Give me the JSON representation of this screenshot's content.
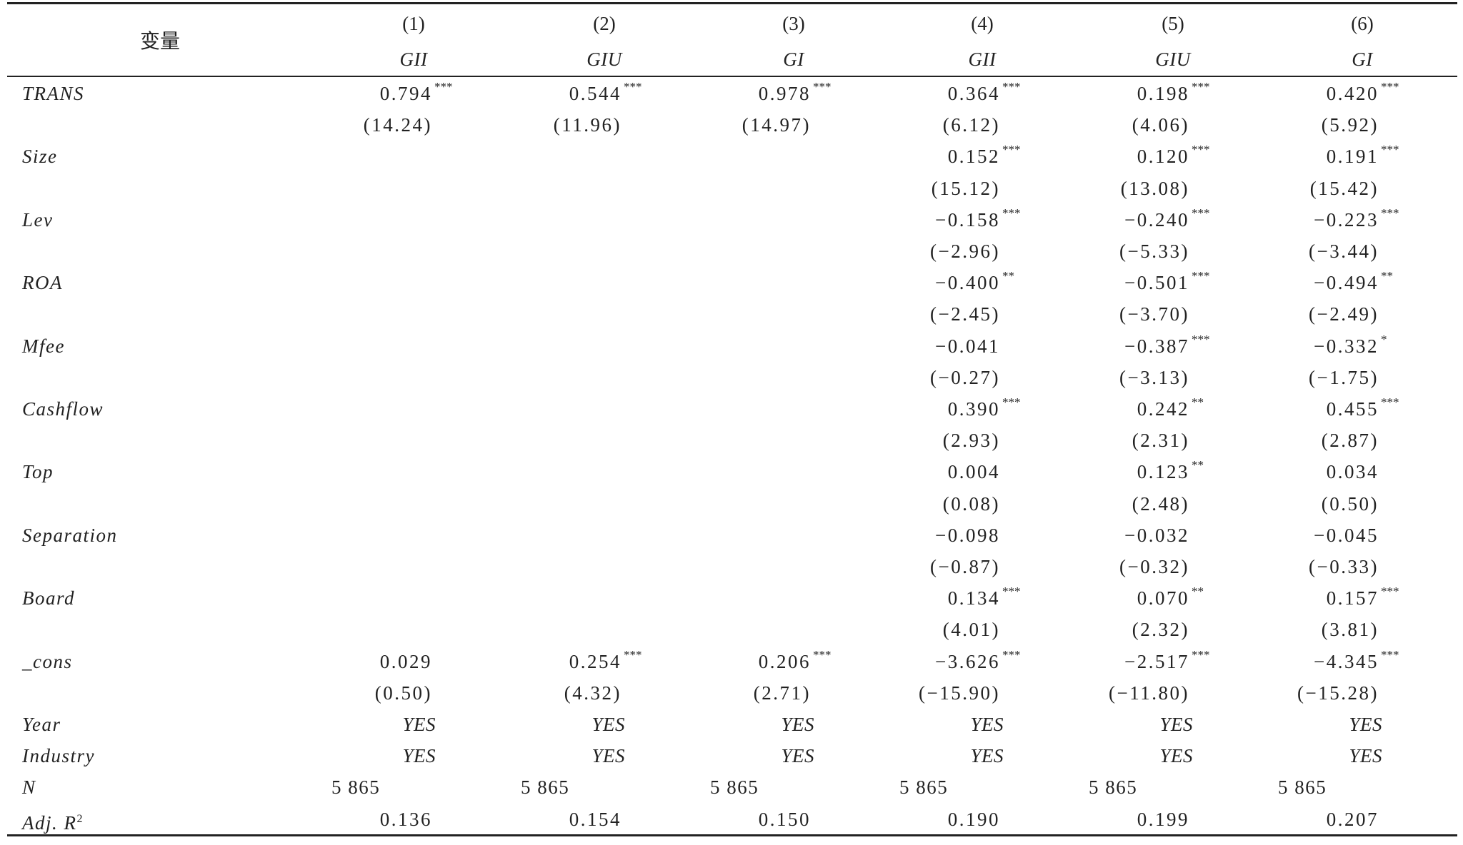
{
  "header": {
    "variable_label": "变量",
    "columns": [
      {
        "num": "(1)",
        "dep": "GII"
      },
      {
        "num": "(2)",
        "dep": "GIU"
      },
      {
        "num": "(3)",
        "dep": "GI"
      },
      {
        "num": "(4)",
        "dep": "GII"
      },
      {
        "num": "(5)",
        "dep": "GIU"
      },
      {
        "num": "(6)",
        "dep": "GI"
      }
    ]
  },
  "rows": [
    {
      "label": "TRANS",
      "cells": [
        {
          "coef": "0.794",
          "stars": "***",
          "t": "(14.24)"
        },
        {
          "coef": "0.544",
          "stars": "***",
          "t": "(11.96)"
        },
        {
          "coef": "0.978",
          "stars": "***",
          "t": "(14.97)"
        },
        {
          "coef": "0.364",
          "stars": "***",
          "t": "(6.12)"
        },
        {
          "coef": "0.198",
          "stars": "***",
          "t": "(4.06)"
        },
        {
          "coef": "0.420",
          "stars": "***",
          "t": "(5.92)"
        }
      ]
    },
    {
      "label": "Size",
      "cells": [
        null,
        null,
        null,
        {
          "coef": "0.152",
          "stars": "***",
          "t": "(15.12)"
        },
        {
          "coef": "0.120",
          "stars": "***",
          "t": "(13.08)"
        },
        {
          "coef": "0.191",
          "stars": "***",
          "t": "(15.42)"
        }
      ]
    },
    {
      "label": "Lev",
      "cells": [
        null,
        null,
        null,
        {
          "coef": "−0.158",
          "stars": "***",
          "t": "(−2.96)"
        },
        {
          "coef": "−0.240",
          "stars": "***",
          "t": "(−5.33)"
        },
        {
          "coef": "−0.223",
          "stars": "***",
          "t": "(−3.44)"
        }
      ]
    },
    {
      "label": "ROA",
      "cells": [
        null,
        null,
        null,
        {
          "coef": "−0.400",
          "stars": "**",
          "t": "(−2.45)"
        },
        {
          "coef": "−0.501",
          "stars": "***",
          "t": "(−3.70)"
        },
        {
          "coef": "−0.494",
          "stars": "**",
          "t": "(−2.49)"
        }
      ]
    },
    {
      "label": "Mfee",
      "cells": [
        null,
        null,
        null,
        {
          "coef": "−0.041",
          "stars": "",
          "t": "(−0.27)"
        },
        {
          "coef": "−0.387",
          "stars": "***",
          "t": "(−3.13)"
        },
        {
          "coef": "−0.332",
          "stars": "*",
          "t": "(−1.75)"
        }
      ]
    },
    {
      "label": "Cashflow",
      "cells": [
        null,
        null,
        null,
        {
          "coef": "0.390",
          "stars": "***",
          "t": "(2.93)"
        },
        {
          "coef": "0.242",
          "stars": "**",
          "t": "(2.31)"
        },
        {
          "coef": "0.455",
          "stars": "***",
          "t": "(2.87)"
        }
      ]
    },
    {
      "label": "Top",
      "cells": [
        null,
        null,
        null,
        {
          "coef": "0.004",
          "stars": "",
          "t": "(0.08)"
        },
        {
          "coef": "0.123",
          "stars": "**",
          "t": "(2.48)"
        },
        {
          "coef": "0.034",
          "stars": "",
          "t": "(0.50)"
        }
      ]
    },
    {
      "label": "Separation",
      "cells": [
        null,
        null,
        null,
        {
          "coef": "−0.098",
          "stars": "",
          "t": "(−0.87)"
        },
        {
          "coef": "−0.032",
          "stars": "",
          "t": "(−0.32)"
        },
        {
          "coef": "−0.045",
          "stars": "",
          "t": "(−0.33)"
        }
      ]
    },
    {
      "label": "Board",
      "cells": [
        null,
        null,
        null,
        {
          "coef": "0.134",
          "stars": "***",
          "t": "(4.01)"
        },
        {
          "coef": "0.070",
          "stars": "**",
          "t": "(2.32)"
        },
        {
          "coef": "0.157",
          "stars": "***",
          "t": "(3.81)"
        }
      ]
    },
    {
      "label": "_cons",
      "cells": [
        {
          "coef": "0.029",
          "stars": "",
          "t": "(0.50)"
        },
        {
          "coef": "0.254",
          "stars": "***",
          "t": "(4.32)"
        },
        {
          "coef": "0.206",
          "stars": "***",
          "t": "(2.71)"
        },
        {
          "coef": "−3.626",
          "stars": "***",
          "t": "(−15.90)"
        },
        {
          "coef": "−2.517",
          "stars": "***",
          "t": "(−11.80)"
        },
        {
          "coef": "−4.345",
          "stars": "***",
          "t": "(−15.28)"
        }
      ]
    }
  ],
  "footer": {
    "year": {
      "label": "Year",
      "values": [
        "YES",
        "YES",
        "YES",
        "YES",
        "YES",
        "YES"
      ]
    },
    "industry": {
      "label": "Industry",
      "values": [
        "YES",
        "YES",
        "YES",
        "YES",
        "YES",
        "YES"
      ]
    },
    "n": {
      "label": "N",
      "values": [
        "5 865",
        "5 865",
        "5 865",
        "5 865",
        "5 865",
        "5 865"
      ]
    },
    "adjr2": {
      "label": "Adj. R",
      "sup": "2",
      "values": [
        "0.136",
        "0.154",
        "0.150",
        "0.190",
        "0.199",
        "0.207"
      ]
    }
  }
}
